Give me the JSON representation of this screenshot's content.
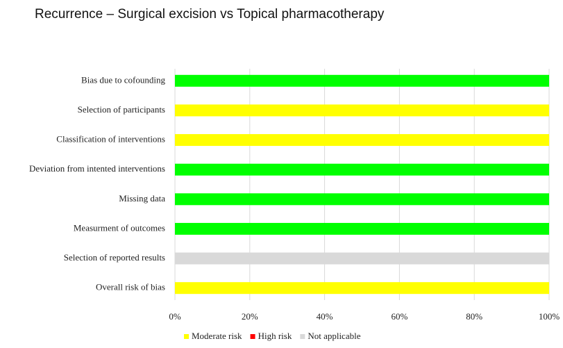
{
  "chart_data": {
    "type": "stacked_bar_horizontal",
    "title": "Recurrence – Surgical excision vs Topical pharmacotherapy",
    "categories": [
      "Bias due to cofounding",
      "Selection of participants",
      "Classification of interventions",
      "Deviation from intented interventions",
      "Missing data",
      "Measurment of outcomes",
      "Selection of reported results",
      "Overall risk of bias"
    ],
    "series": [
      {
        "color": "#00ff00",
        "values": [
          100,
          0,
          0,
          100,
          100,
          100,
          0,
          0
        ]
      },
      {
        "name": "Moderate risk",
        "color": "#ffff00",
        "values": [
          0,
          100,
          100,
          0,
          0,
          0,
          0,
          100
        ]
      },
      {
        "name": "High risk",
        "color": "#ff0000",
        "values": [
          0,
          0,
          0,
          0,
          0,
          0,
          0,
          0
        ]
      },
      {
        "name": "Not applicable",
        "color": "#d9d9d9",
        "values": [
          0,
          0,
          0,
          0,
          0,
          0,
          100,
          0
        ]
      }
    ],
    "xlim": [
      0,
      100
    ],
    "xticks": [
      {
        "value": 0,
        "label": "0%"
      },
      {
        "value": 20,
        "label": "20%"
      },
      {
        "value": 40,
        "label": "40%"
      },
      {
        "value": 60,
        "label": "60%"
      },
      {
        "value": 80,
        "label": "80%"
      },
      {
        "value": 100,
        "label": "100%"
      }
    ],
    "grid": true,
    "legend": "bottom"
  }
}
